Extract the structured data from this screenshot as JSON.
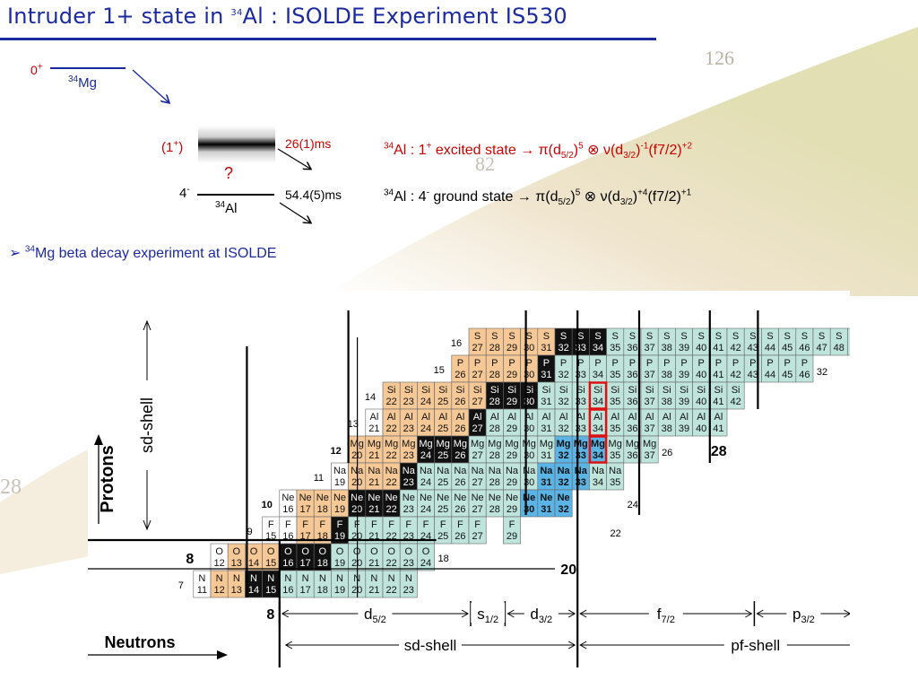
{
  "title": {
    "prefix": "Intruder 1+ state in ",
    "mass": "34",
    "rest": "Al : ISOLDE Experiment IS530"
  },
  "levels": {
    "mg_spin": "0+",
    "mg_nucleus_mass": "34",
    "mg_nucleus": "Mg",
    "al_excited_spin": "(1+)",
    "al_excited_halflife": "26(1)ms",
    "unknown": "?",
    "al_ground_spin": "4-",
    "al_ground_halflife": "54.4(5)ms",
    "al_nucleus_mass": "34",
    "al_nucleus": "Al"
  },
  "configs": {
    "excited": "34Al : 1+ excited state → π(d5/2)5 ⊗ ν(d3/2)-1(f7/2)+2",
    "ground": "34Al : 4- ground state → π(d5/2)5 ⊗ ν(d3/2)+4(f7/2)+1"
  },
  "bullet": {
    "marker": "➢",
    "mass": "34",
    "text": "Mg beta decay experiment at ISOLDE"
  },
  "background_numbers": {
    "a": "126",
    "b": "82",
    "c": "28"
  },
  "chart": {
    "colors": {
      "orange": "#f5c896",
      "black": "#111111",
      "teal": "#bfe4dc",
      "blue": "#5ab4e6",
      "white": "#ffffff",
      "highlight": "#dd1111"
    },
    "rows": [
      {
        "z": "16",
        "symbol": "S",
        "cells": [
          {
            "n": "27",
            "c": "o"
          },
          {
            "n": "28",
            "c": "o"
          },
          {
            "n": "29",
            "c": "o"
          },
          {
            "n": "30",
            "c": "o"
          },
          {
            "n": "31",
            "c": "o"
          },
          {
            "n": "32",
            "c": "k"
          },
          {
            "n": "33",
            "c": "k"
          },
          {
            "n": "34",
            "c": "k"
          },
          {
            "n": "35",
            "c": "t"
          },
          {
            "n": "36",
            "c": "t"
          },
          {
            "n": "37",
            "c": "t"
          },
          {
            "n": "38",
            "c": "t"
          },
          {
            "n": "39",
            "c": "t"
          },
          {
            "n": "40",
            "c": "t"
          },
          {
            "n": "41",
            "c": "t"
          },
          {
            "n": "42",
            "c": "t"
          },
          {
            "n": "43",
            "c": "t"
          },
          {
            "n": "44",
            "c": "t"
          },
          {
            "n": "45",
            "c": "t"
          },
          {
            "n": "46",
            "c": "t"
          },
          {
            "n": "47",
            "c": "t"
          },
          {
            "n": "48",
            "c": "t"
          },
          {
            "n": "49",
            "c": "t"
          }
        ]
      },
      {
        "z": "15",
        "symbol": "P",
        "cells": [
          {
            "n": "26",
            "c": "o"
          },
          {
            "n": "27",
            "c": "o"
          },
          {
            "n": "28",
            "c": "o"
          },
          {
            "n": "29",
            "c": "o"
          },
          {
            "n": "30",
            "c": "o"
          },
          {
            "n": "31",
            "c": "k"
          },
          {
            "n": "32",
            "c": "t"
          },
          {
            "n": "33",
            "c": "t"
          },
          {
            "n": "34",
            "c": "t"
          },
          {
            "n": "35",
            "c": "t"
          },
          {
            "n": "36",
            "c": "t"
          },
          {
            "n": "37",
            "c": "t"
          },
          {
            "n": "38",
            "c": "t"
          },
          {
            "n": "39",
            "c": "t"
          },
          {
            "n": "40",
            "c": "t"
          },
          {
            "n": "41",
            "c": "t"
          },
          {
            "n": "42",
            "c": "t"
          },
          {
            "n": "43",
            "c": "t"
          },
          {
            "n": "44",
            "c": "t"
          },
          {
            "n": "45",
            "c": "t"
          },
          {
            "n": "46",
            "c": "t"
          }
        ]
      },
      {
        "z": "14",
        "symbol": "Si",
        "cells": [
          {
            "n": "22",
            "c": "o"
          },
          {
            "n": "23",
            "c": "o"
          },
          {
            "n": "24",
            "c": "o"
          },
          {
            "n": "25",
            "c": "o"
          },
          {
            "n": "26",
            "c": "o"
          },
          {
            "n": "27",
            "c": "o"
          },
          {
            "n": "28",
            "c": "k"
          },
          {
            "n": "29",
            "c": "k"
          },
          {
            "n": "30",
            "c": "k"
          },
          {
            "n": "31",
            "c": "t"
          },
          {
            "n": "32",
            "c": "t"
          },
          {
            "n": "33",
            "c": "t"
          },
          {
            "n": "34",
            "c": "t",
            "h": true
          },
          {
            "n": "35",
            "c": "t"
          },
          {
            "n": "36",
            "c": "t"
          },
          {
            "n": "37",
            "c": "t"
          },
          {
            "n": "38",
            "c": "t"
          },
          {
            "n": "39",
            "c": "t"
          },
          {
            "n": "40",
            "c": "t"
          },
          {
            "n": "41",
            "c": "t"
          },
          {
            "n": "42",
            "c": "t"
          }
        ]
      },
      {
        "z": "13",
        "symbol": "Al",
        "cells": [
          {
            "n": "21",
            "c": "w"
          },
          {
            "n": "22",
            "c": "o"
          },
          {
            "n": "23",
            "c": "o"
          },
          {
            "n": "24",
            "c": "o"
          },
          {
            "n": "25",
            "c": "o"
          },
          {
            "n": "26",
            "c": "o"
          },
          {
            "n": "27",
            "c": "k"
          },
          {
            "n": "28",
            "c": "t"
          },
          {
            "n": "29",
            "c": "t"
          },
          {
            "n": "30",
            "c": "t"
          },
          {
            "n": "31",
            "c": "t"
          },
          {
            "n": "32",
            "c": "t"
          },
          {
            "n": "33",
            "c": "t"
          },
          {
            "n": "34",
            "c": "t",
            "h": true
          },
          {
            "n": "35",
            "c": "t"
          },
          {
            "n": "36",
            "c": "t"
          },
          {
            "n": "37",
            "c": "t"
          },
          {
            "n": "38",
            "c": "t"
          },
          {
            "n": "39",
            "c": "t"
          },
          {
            "n": "40",
            "c": "t"
          },
          {
            "n": "41",
            "c": "t"
          }
        ]
      },
      {
        "z": "12",
        "symbol": "Mg",
        "cells": [
          {
            "n": "20",
            "c": "o"
          },
          {
            "n": "21",
            "c": "o"
          },
          {
            "n": "22",
            "c": "o"
          },
          {
            "n": "23",
            "c": "o"
          },
          {
            "n": "24",
            "c": "k"
          },
          {
            "n": "25",
            "c": "k"
          },
          {
            "n": "26",
            "c": "k"
          },
          {
            "n": "27",
            "c": "t"
          },
          {
            "n": "28",
            "c": "t"
          },
          {
            "n": "29",
            "c": "t"
          },
          {
            "n": "30",
            "c": "t"
          },
          {
            "n": "31",
            "c": "t"
          },
          {
            "n": "32",
            "c": "b"
          },
          {
            "n": "33",
            "c": "b"
          },
          {
            "n": "34",
            "c": "b",
            "h": true
          },
          {
            "n": "35",
            "c": "t"
          },
          {
            "n": "36",
            "c": "t"
          },
          {
            "n": "37",
            "c": "t"
          }
        ]
      },
      {
        "z": "11",
        "symbol": "Na",
        "cells": [
          {
            "n": "19",
            "c": "w"
          },
          {
            "n": "20",
            "c": "o"
          },
          {
            "n": "21",
            "c": "o"
          },
          {
            "n": "22",
            "c": "o"
          },
          {
            "n": "23",
            "c": "k"
          },
          {
            "n": "24",
            "c": "t"
          },
          {
            "n": "25",
            "c": "t"
          },
          {
            "n": "26",
            "c": "t"
          },
          {
            "n": "27",
            "c": "t"
          },
          {
            "n": "28",
            "c": "t"
          },
          {
            "n": "29",
            "c": "t"
          },
          {
            "n": "30",
            "c": "t"
          },
          {
            "n": "31",
            "c": "b"
          },
          {
            "n": "32",
            "c": "b"
          },
          {
            "n": "33",
            "c": "b"
          },
          {
            "n": "34",
            "c": "t"
          },
          {
            "n": "35",
            "c": "t"
          }
        ]
      },
      {
        "z": "10",
        "symbol": "Ne",
        "cells": [
          {
            "n": "16",
            "c": "w"
          },
          {
            "n": "17",
            "c": "o"
          },
          {
            "n": "18",
            "c": "o"
          },
          {
            "n": "19",
            "c": "o"
          },
          {
            "n": "20",
            "c": "k"
          },
          {
            "n": "21",
            "c": "k"
          },
          {
            "n": "22",
            "c": "k"
          },
          {
            "n": "23",
            "c": "t"
          },
          {
            "n": "24",
            "c": "t"
          },
          {
            "n": "25",
            "c": "t"
          },
          {
            "n": "26",
            "c": "t"
          },
          {
            "n": "27",
            "c": "t"
          },
          {
            "n": "28",
            "c": "t"
          },
          {
            "n": "29",
            "c": "t"
          },
          {
            "n": "30",
            "c": "b"
          },
          {
            "n": "31",
            "c": "b"
          },
          {
            "n": "32",
            "c": "b"
          }
        ]
      },
      {
        "z": "9",
        "symbol": "F",
        "cells": [
          {
            "n": "15",
            "c": "w"
          },
          {
            "n": "16",
            "c": "w"
          },
          {
            "n": "17",
            "c": "o"
          },
          {
            "n": "18",
            "c": "o"
          },
          {
            "n": "19",
            "c": "k"
          },
          {
            "n": "20",
            "c": "t"
          },
          {
            "n": "21",
            "c": "t"
          },
          {
            "n": "22",
            "c": "t"
          },
          {
            "n": "23",
            "c": "t"
          },
          {
            "n": "24",
            "c": "t"
          },
          {
            "n": "25",
            "c": "t"
          },
          {
            "n": "26",
            "c": "t"
          },
          {
            "n": "27",
            "c": "t"
          },
          {
            "n": "29",
            "c": "t",
            "skip": 1
          }
        ]
      },
      {
        "z": "8",
        "symbol": "O",
        "cells": [
          {
            "n": "12",
            "c": "w"
          },
          {
            "n": "13",
            "c": "o"
          },
          {
            "n": "14",
            "c": "o"
          },
          {
            "n": "15",
            "c": "o"
          },
          {
            "n": "16",
            "c": "k"
          },
          {
            "n": "17",
            "c": "k"
          },
          {
            "n": "18",
            "c": "k"
          },
          {
            "n": "19",
            "c": "t"
          },
          {
            "n": "20",
            "c": "t"
          },
          {
            "n": "21",
            "c": "t"
          },
          {
            "n": "22",
            "c": "t"
          },
          {
            "n": "23",
            "c": "t"
          },
          {
            "n": "24",
            "c": "t"
          }
        ]
      },
      {
        "z": "7",
        "symbol": "N",
        "cells": [
          {
            "n": "11",
            "c": "w"
          },
          {
            "n": "12",
            "c": "o"
          },
          {
            "n": "13",
            "c": "o"
          },
          {
            "n": "14",
            "c": "k"
          },
          {
            "n": "15",
            "c": "k"
          },
          {
            "n": "16",
            "c": "t"
          },
          {
            "n": "17",
            "c": "t"
          },
          {
            "n": "18",
            "c": "t"
          },
          {
            "n": "19",
            "c": "t"
          },
          {
            "n": "20",
            "c": "t"
          },
          {
            "n": "21",
            "c": "t"
          },
          {
            "n": "22",
            "c": "t"
          },
          {
            "n": "23",
            "c": "t"
          }
        ]
      }
    ],
    "neutron_edge_labels": [
      "32",
      "26",
      "24",
      "22",
      "18"
    ],
    "magic": {
      "p28": "28",
      "p20": "20",
      "z8_row": "8",
      "n8": "8",
      "z12": "12",
      "z10": "10"
    },
    "axis": {
      "protons": "Protons",
      "proton_shell": "sd-shell",
      "neutrons": "Neutrons"
    },
    "orbitals": {
      "d52": "d5/2",
      "s12": "s1/2",
      "d32": "d3/2",
      "f72": "f7/2",
      "p32": "p3/2"
    },
    "shells": {
      "sd": "sd-shell",
      "pf": "pf-shell"
    }
  }
}
